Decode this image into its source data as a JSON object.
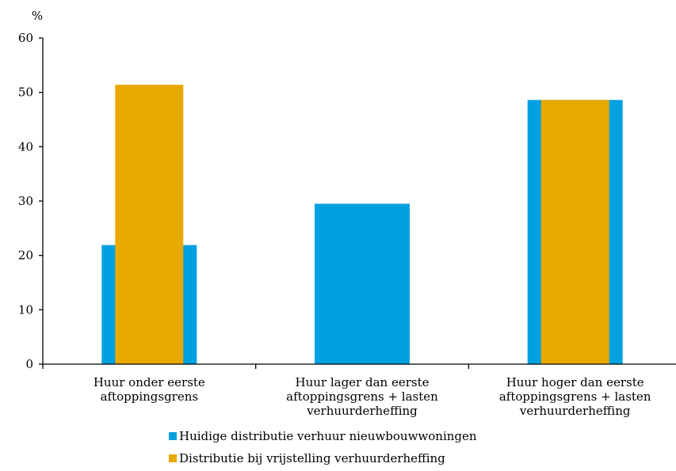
{
  "chart_data": {
    "type": "bar",
    "ylabel": "%",
    "ylim": [
      0,
      60
    ],
    "yticks": [
      0,
      10,
      20,
      30,
      40,
      50,
      60
    ],
    "categories": [
      [
        "Huur onder eerste",
        "aftoppingsgrens"
      ],
      [
        "Huur lager dan eerste",
        "aftoppingsgrens + lasten",
        "verhuurderheffing"
      ],
      [
        "Huur hoger dan eerste",
        "aftoppingsgrens + lasten",
        "verhuurderheffing"
      ]
    ],
    "series": [
      {
        "name": "Huidige distributie verhuur nieuwbouwwoningen",
        "color": "#00A0E1",
        "values": [
          21.9,
          29.5,
          48.6
        ]
      },
      {
        "name": "Distributie bij vrijstelling verhuurderheffing",
        "color": "#E8A900",
        "values": [
          51.4,
          0,
          48.6
        ]
      }
    ],
    "legend_position": "bottom",
    "grid": false
  }
}
